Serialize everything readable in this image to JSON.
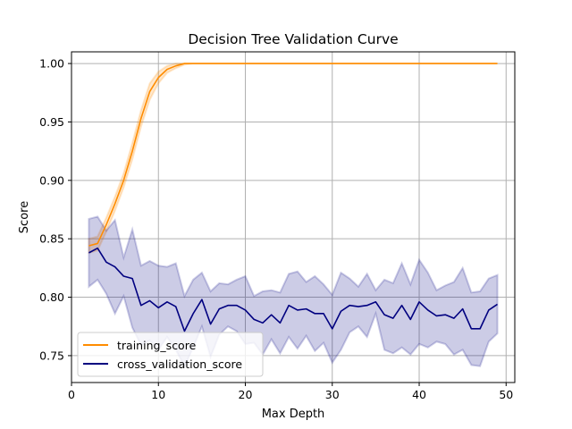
{
  "chart_data": {
    "type": "line",
    "title": "Decision Tree Validation Curve",
    "xlabel": "Max Depth",
    "ylabel": "Score",
    "xlim": [
      0,
      51
    ],
    "ylim": [
      0.727,
      1.01
    ],
    "xticks": [
      0,
      10,
      20,
      30,
      40,
      50
    ],
    "yticks": [
      0.75,
      0.8,
      0.85,
      0.9,
      0.95,
      1.0
    ],
    "xtick_labels": [
      "0",
      "10",
      "20",
      "30",
      "40",
      "50"
    ],
    "ytick_labels": [
      "0.75",
      "0.80",
      "0.85",
      "0.90",
      "0.95",
      "1.00"
    ],
    "grid": true,
    "legend_position": "lower-left",
    "x": [
      2,
      3,
      4,
      5,
      6,
      7,
      8,
      9,
      10,
      11,
      12,
      13,
      14,
      15,
      16,
      17,
      18,
      19,
      20,
      21,
      22,
      23,
      24,
      25,
      26,
      27,
      28,
      29,
      30,
      31,
      32,
      33,
      34,
      35,
      36,
      37,
      38,
      39,
      40,
      41,
      42,
      43,
      44,
      45,
      46,
      47,
      48,
      49
    ],
    "series": [
      {
        "name": "training_score",
        "color": "#ff8c00",
        "mean": [
          0.844,
          0.846,
          0.862,
          0.88,
          0.9,
          0.925,
          0.953,
          0.976,
          0.988,
          0.995,
          0.998,
          1.0,
          1.0,
          1.0,
          1.0,
          1.0,
          1.0,
          1.0,
          1.0,
          1.0,
          1.0,
          1.0,
          1.0,
          1.0,
          1.0,
          1.0,
          1.0,
          1.0,
          1.0,
          1.0,
          1.0,
          1.0,
          1.0,
          1.0,
          1.0,
          1.0,
          1.0,
          1.0,
          1.0,
          1.0,
          1.0,
          1.0,
          1.0,
          1.0,
          1.0,
          1.0,
          1.0,
          1.0
        ],
        "upper": [
          0.85,
          0.852,
          0.868,
          0.886,
          0.906,
          0.932,
          0.96,
          0.983,
          0.993,
          0.998,
          1.0,
          1.0,
          1.0,
          1.0,
          1.0,
          1.0,
          1.0,
          1.0,
          1.0,
          1.0,
          1.0,
          1.0,
          1.0,
          1.0,
          1.0,
          1.0,
          1.0,
          1.0,
          1.0,
          1.0,
          1.0,
          1.0,
          1.0,
          1.0,
          1.0,
          1.0,
          1.0,
          1.0,
          1.0,
          1.0,
          1.0,
          1.0,
          1.0,
          1.0,
          1.0,
          1.0,
          1.0,
          1.0
        ],
        "lower": [
          0.838,
          0.84,
          0.856,
          0.874,
          0.894,
          0.918,
          0.946,
          0.969,
          0.983,
          0.992,
          0.996,
          0.999,
          1.0,
          1.0,
          1.0,
          1.0,
          1.0,
          1.0,
          1.0,
          1.0,
          1.0,
          1.0,
          1.0,
          1.0,
          1.0,
          1.0,
          1.0,
          1.0,
          1.0,
          1.0,
          1.0,
          1.0,
          1.0,
          1.0,
          1.0,
          1.0,
          1.0,
          1.0,
          1.0,
          1.0,
          1.0,
          1.0,
          1.0,
          1.0,
          1.0,
          1.0,
          1.0,
          1.0
        ]
      },
      {
        "name": "cross_validation_score",
        "color": "#000080",
        "mean": [
          0.838,
          0.842,
          0.83,
          0.826,
          0.818,
          0.816,
          0.793,
          0.797,
          0.791,
          0.796,
          0.792,
          0.771,
          0.786,
          0.798,
          0.777,
          0.79,
          0.793,
          0.793,
          0.789,
          0.781,
          0.778,
          0.785,
          0.778,
          0.793,
          0.789,
          0.79,
          0.786,
          0.786,
          0.773,
          0.788,
          0.793,
          0.792,
          0.793,
          0.796,
          0.785,
          0.782,
          0.793,
          0.781,
          0.796,
          0.789,
          0.784,
          0.785,
          0.782,
          0.79,
          0.773,
          0.773,
          0.789,
          0.794
        ],
        "upper": [
          0.867,
          0.869,
          0.857,
          0.866,
          0.834,
          0.858,
          0.827,
          0.831,
          0.827,
          0.826,
          0.829,
          0.801,
          0.815,
          0.821,
          0.805,
          0.812,
          0.811,
          0.815,
          0.818,
          0.801,
          0.805,
          0.806,
          0.804,
          0.82,
          0.822,
          0.813,
          0.818,
          0.811,
          0.802,
          0.821,
          0.816,
          0.809,
          0.82,
          0.806,
          0.815,
          0.812,
          0.829,
          0.811,
          0.832,
          0.821,
          0.806,
          0.81,
          0.813,
          0.825,
          0.804,
          0.805,
          0.816,
          0.819
        ],
        "lower": [
          0.809,
          0.815,
          0.803,
          0.786,
          0.801,
          0.774,
          0.759,
          0.763,
          0.755,
          0.766,
          0.755,
          0.741,
          0.757,
          0.775,
          0.749,
          0.768,
          0.775,
          0.771,
          0.76,
          0.761,
          0.751,
          0.764,
          0.752,
          0.766,
          0.756,
          0.767,
          0.754,
          0.761,
          0.744,
          0.755,
          0.77,
          0.775,
          0.766,
          0.786,
          0.755,
          0.752,
          0.757,
          0.751,
          0.76,
          0.757,
          0.762,
          0.76,
          0.751,
          0.755,
          0.742,
          0.741,
          0.762,
          0.769
        ]
      }
    ]
  }
}
